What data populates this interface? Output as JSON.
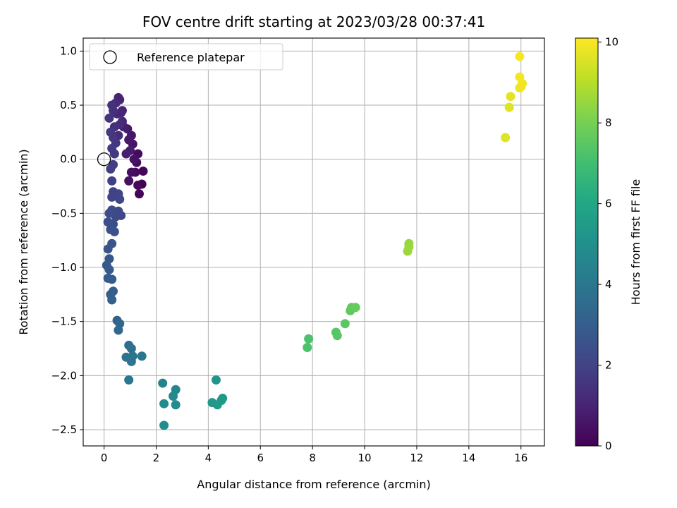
{
  "chart_data": {
    "type": "scatter",
    "title": "FOV centre drift starting at 2023/03/28 00:37:41",
    "xlabel": "Angular distance from reference (arcmin)",
    "ylabel": "Rotation from reference (arcmin)",
    "colorbar_label": "Hours from first FF file",
    "colormap": "viridis",
    "xlim": [
      -0.8,
      16.9
    ],
    "ylim": [
      -2.65,
      1.12
    ],
    "clim": [
      0,
      10.1
    ],
    "xticks": [
      0,
      2,
      4,
      6,
      8,
      10,
      12,
      14,
      16
    ],
    "yticks": [
      -2.5,
      -2.0,
      -1.5,
      -1.0,
      -0.5,
      0.0,
      0.5,
      1.0
    ],
    "cticks": [
      0,
      2,
      4,
      6,
      8,
      10
    ],
    "xtick_labels": [
      "0",
      "2",
      "4",
      "6",
      "8",
      "10",
      "12",
      "14",
      "16"
    ],
    "ytick_labels": [
      "−2.5",
      "−2.0",
      "−1.5",
      "−1.0",
      "−0.5",
      "0.0",
      "0.5",
      "1.0"
    ],
    "ctick_labels": [
      "0",
      "2",
      "4",
      "6",
      "8",
      "10"
    ],
    "grid": true,
    "legend": {
      "position": "top-left",
      "label": "Reference platepar"
    },
    "reference_point": {
      "x": 0.0,
      "y": 0.0
    },
    "points": [
      {
        "x": 1.45,
        "y": -0.23,
        "t": 0.05
      },
      {
        "x": 1.5,
        "y": -0.11,
        "t": 0.1
      },
      {
        "x": 1.35,
        "y": -0.32,
        "t": 0.15
      },
      {
        "x": 1.3,
        "y": -0.24,
        "t": 0.2
      },
      {
        "x": 1.2,
        "y": -0.12,
        "t": 0.25
      },
      {
        "x": 1.3,
        "y": 0.05,
        "t": 0.3
      },
      {
        "x": 1.25,
        "y": -0.03,
        "t": 0.35
      },
      {
        "x": 1.05,
        "y": -0.12,
        "t": 0.4
      },
      {
        "x": 0.95,
        "y": -0.2,
        "t": 0.45
      },
      {
        "x": 1.15,
        "y": 0.0,
        "t": 0.5
      },
      {
        "x": 1.1,
        "y": 0.14,
        "t": 0.55
      },
      {
        "x": 1.05,
        "y": 0.22,
        "t": 0.6
      },
      {
        "x": 0.95,
        "y": 0.18,
        "t": 0.65
      },
      {
        "x": 0.9,
        "y": 0.28,
        "t": 0.7
      },
      {
        "x": 1.0,
        "y": 0.08,
        "t": 0.75
      },
      {
        "x": 0.85,
        "y": 0.05,
        "t": 0.8
      },
      {
        "x": 0.75,
        "y": 0.3,
        "t": 0.85
      },
      {
        "x": 0.7,
        "y": 0.45,
        "t": 0.9
      },
      {
        "x": 0.6,
        "y": 0.55,
        "t": 0.95
      },
      {
        "x": 0.55,
        "y": 0.57,
        "t": 1.0
      },
      {
        "x": 0.65,
        "y": 0.43,
        "t": 1.05
      },
      {
        "x": 0.7,
        "y": 0.35,
        "t": 1.1
      },
      {
        "x": 0.5,
        "y": 0.42,
        "t": 1.15
      },
      {
        "x": 0.45,
        "y": 0.52,
        "t": 1.2
      },
      {
        "x": 0.6,
        "y": 0.32,
        "t": 1.25
      },
      {
        "x": 0.55,
        "y": 0.22,
        "t": 1.3
      },
      {
        "x": 0.4,
        "y": 0.3,
        "t": 1.35
      },
      {
        "x": 0.35,
        "y": 0.45,
        "t": 1.4
      },
      {
        "x": 0.3,
        "y": 0.5,
        "t": 1.45
      },
      {
        "x": 0.2,
        "y": 0.38,
        "t": 1.5
      },
      {
        "x": 0.45,
        "y": 0.15,
        "t": 1.55
      },
      {
        "x": 0.35,
        "y": 0.2,
        "t": 1.6
      },
      {
        "x": 0.25,
        "y": 0.25,
        "t": 1.65
      },
      {
        "x": 0.4,
        "y": 0.05,
        "t": 1.7
      },
      {
        "x": 0.3,
        "y": 0.1,
        "t": 1.75
      },
      {
        "x": 0.35,
        "y": -0.05,
        "t": 1.8
      },
      {
        "x": 0.25,
        "y": -0.09,
        "t": 1.85
      },
      {
        "x": 0.3,
        "y": -0.2,
        "t": 1.9
      },
      {
        "x": 0.35,
        "y": -0.3,
        "t": 1.95
      },
      {
        "x": 0.3,
        "y": -0.35,
        "t": 2.0
      },
      {
        "x": 0.55,
        "y": -0.32,
        "t": 2.05
      },
      {
        "x": 0.6,
        "y": -0.37,
        "t": 2.1
      },
      {
        "x": 0.65,
        "y": -0.52,
        "t": 2.15
      },
      {
        "x": 0.55,
        "y": -0.48,
        "t": 2.2
      },
      {
        "x": 0.45,
        "y": -0.53,
        "t": 2.25
      },
      {
        "x": 0.3,
        "y": -0.47,
        "t": 2.3
      },
      {
        "x": 0.2,
        "y": -0.5,
        "t": 2.35
      },
      {
        "x": 0.35,
        "y": -0.6,
        "t": 2.4
      },
      {
        "x": 0.15,
        "y": -0.58,
        "t": 2.45
      },
      {
        "x": 0.25,
        "y": -0.65,
        "t": 2.5
      },
      {
        "x": 0.4,
        "y": -0.67,
        "t": 2.55
      },
      {
        "x": 0.3,
        "y": -0.78,
        "t": 2.6
      },
      {
        "x": 0.15,
        "y": -0.83,
        "t": 2.65
      },
      {
        "x": 0.2,
        "y": -0.92,
        "t": 2.7
      },
      {
        "x": 0.1,
        "y": -0.98,
        "t": 2.75
      },
      {
        "x": 0.2,
        "y": -1.02,
        "t": 2.8
      },
      {
        "x": 0.15,
        "y": -1.1,
        "t": 2.85
      },
      {
        "x": 0.3,
        "y": -1.11,
        "t": 2.9
      },
      {
        "x": 0.35,
        "y": -1.22,
        "t": 2.95
      },
      {
        "x": 0.25,
        "y": -1.25,
        "t": 3.0
      },
      {
        "x": 0.3,
        "y": -1.3,
        "t": 3.05
      },
      {
        "x": 0.5,
        "y": -1.49,
        "t": 3.2
      },
      {
        "x": 0.6,
        "y": -1.52,
        "t": 3.3
      },
      {
        "x": 0.55,
        "y": -1.58,
        "t": 3.4
      },
      {
        "x": 0.95,
        "y": -1.72,
        "t": 3.6
      },
      {
        "x": 1.05,
        "y": -1.75,
        "t": 3.7
      },
      {
        "x": 0.85,
        "y": -1.83,
        "t": 3.8
      },
      {
        "x": 1.1,
        "y": -1.82,
        "t": 3.85
      },
      {
        "x": 1.05,
        "y": -1.87,
        "t": 3.9
      },
      {
        "x": 1.45,
        "y": -1.82,
        "t": 3.95
      },
      {
        "x": 0.95,
        "y": -2.04,
        "t": 4.0
      },
      {
        "x": 2.25,
        "y": -2.07,
        "t": 4.5
      },
      {
        "x": 2.75,
        "y": -2.13,
        "t": 4.6
      },
      {
        "x": 2.65,
        "y": -2.19,
        "t": 4.7
      },
      {
        "x": 2.3,
        "y": -2.26,
        "t": 4.8
      },
      {
        "x": 2.75,
        "y": -2.27,
        "t": 4.85
      },
      {
        "x": 2.3,
        "y": -2.46,
        "t": 4.9
      },
      {
        "x": 4.3,
        "y": -2.04,
        "t": 5.2
      },
      {
        "x": 4.55,
        "y": -2.21,
        "t": 5.3
      },
      {
        "x": 4.15,
        "y": -2.25,
        "t": 5.35
      },
      {
        "x": 4.5,
        "y": -2.23,
        "t": 5.4
      },
      {
        "x": 4.35,
        "y": -2.27,
        "t": 5.45
      },
      {
        "x": 7.85,
        "y": -1.66,
        "t": 7.2
      },
      {
        "x": 7.8,
        "y": -1.74,
        "t": 7.25
      },
      {
        "x": 8.9,
        "y": -1.6,
        "t": 7.4
      },
      {
        "x": 8.95,
        "y": -1.63,
        "t": 7.45
      },
      {
        "x": 9.25,
        "y": -1.52,
        "t": 7.5
      },
      {
        "x": 9.45,
        "y": -1.4,
        "t": 7.6
      },
      {
        "x": 9.5,
        "y": -1.37,
        "t": 7.65
      },
      {
        "x": 9.65,
        "y": -1.37,
        "t": 7.7
      },
      {
        "x": 11.7,
        "y": -0.78,
        "t": 8.5
      },
      {
        "x": 11.7,
        "y": -0.81,
        "t": 8.55
      },
      {
        "x": 11.65,
        "y": -0.85,
        "t": 8.6
      },
      {
        "x": 15.4,
        "y": 0.2,
        "t": 9.6
      },
      {
        "x": 15.55,
        "y": 0.48,
        "t": 9.65
      },
      {
        "x": 15.6,
        "y": 0.58,
        "t": 9.7
      },
      {
        "x": 15.95,
        "y": 0.66,
        "t": 9.8
      },
      {
        "x": 16.05,
        "y": 0.7,
        "t": 9.85
      },
      {
        "x": 16.0,
        "y": 0.67,
        "t": 9.9
      },
      {
        "x": 15.95,
        "y": 0.76,
        "t": 9.95
      },
      {
        "x": 15.95,
        "y": 0.95,
        "t": 10.0
      }
    ]
  }
}
